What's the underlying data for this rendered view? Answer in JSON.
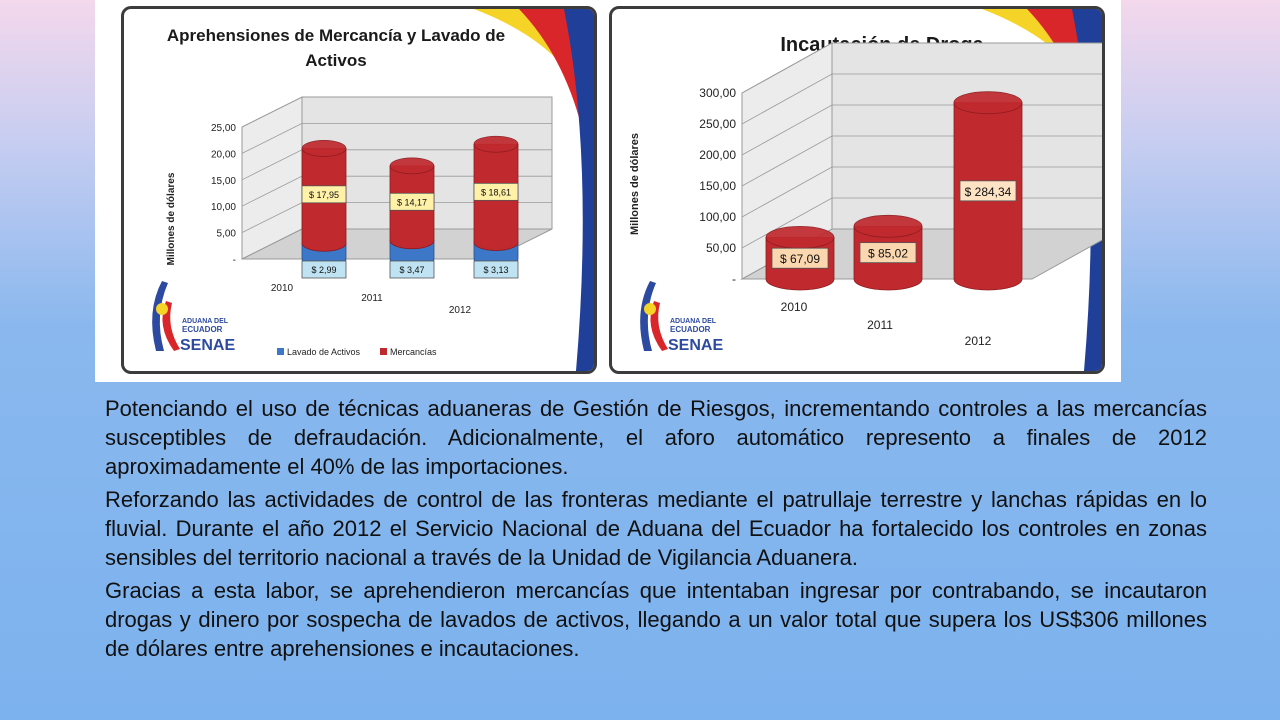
{
  "paragraphs": [
    "Potenciando el uso de técnicas aduaneras de Gestión de Riesgos, incrementando controles a las mercancías susceptibles de defraudación. Adicionalmente, el aforo automático represento a finales de 2012 aproximadamente el 40% de las importaciones.",
    "Reforzando las actividades de control de las fronteras mediante el patrullaje terrestre y lanchas rápidas en lo fluvial. Durante el año 2012 el Servicio Nacional de Aduana del Ecuador ha fortalecido los controles en zonas sensibles del territorio nacional a través de la Unidad de Vigilancia Aduanera.",
    "Gracias a esta labor, se aprehendieron mercancías que intentaban ingresar por contrabando, se incautaron drogas y dinero por sospecha de lavados de activos, llegando a un valor total que supera los US$306 millones de dólares entre aprehensiones e incautaciones."
  ],
  "logo": {
    "line1": "ADUANA DEL",
    "line2": "ECUADOR",
    "line3": "SENAE"
  },
  "colors": {
    "red": "#c0292e",
    "red_dark": "#8e1b1f",
    "blue": "#3d78c8",
    "blue_dark": "#274f8a",
    "ribbon_yellow": "#f5d327",
    "ribbon_red": "#d9262a",
    "ribbon_blue": "#1f3f99"
  },
  "chart_data": [
    {
      "type": "bar",
      "title_line1": "Aprehensiones de Mercancía y Lavado de",
      "title_line2": "Activos",
      "ylabel": "Millones de dólares",
      "ylim": [
        0,
        25
      ],
      "yticks": [
        "25,00",
        "20,00",
        "15,00",
        "10,00",
        "5,00",
        "-"
      ],
      "categories": [
        "2010",
        "2011",
        "2012"
      ],
      "series": [
        {
          "name": "Lavado de Activos",
          "values": [
            2.99,
            3.47,
            3.13
          ],
          "labels": [
            "$ 2,99",
            "$ 3,47",
            "$ 3,13"
          ]
        },
        {
          "name": "Mercancías",
          "values": [
            17.95,
            14.17,
            18.61
          ],
          "labels": [
            "$ 17,95",
            "$ 14,17",
            "$ 18,61"
          ]
        }
      ],
      "stacked": true,
      "legend": [
        "Lavado de Activos",
        "Mercancías"
      ]
    },
    {
      "type": "bar",
      "title": "Incautación de  Droga",
      "ylabel": "Millones de dólares",
      "ylim": [
        0,
        300
      ],
      "yticks": [
        "300,00",
        "250,00",
        "200,00",
        "150,00",
        "100,00",
        "50,00",
        "-"
      ],
      "categories": [
        "2010",
        "2011",
        "2012"
      ],
      "values": [
        67.09,
        85.02,
        284.34
      ],
      "labels": [
        "$ 67,09",
        "$ 85,02",
        "$ 284,34"
      ]
    }
  ]
}
